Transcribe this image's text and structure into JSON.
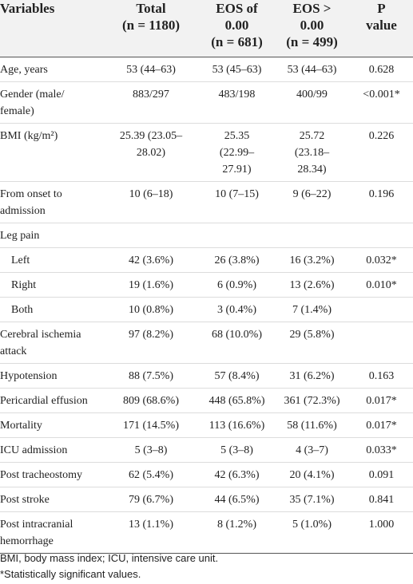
{
  "headers": [
    {
      "lines": [
        "Variables"
      ]
    },
    {
      "lines": [
        "Total",
        "(n = 1180)"
      ]
    },
    {
      "lines": [
        "EOS of",
        "0.00",
        "(n = 681)"
      ]
    },
    {
      "lines": [
        "EOS >",
        "0.00",
        "(n = 499)"
      ]
    },
    {
      "lines": [
        "P",
        "value"
      ]
    }
  ],
  "rows": [
    {
      "label": [
        "Age, years"
      ],
      "total": [
        "53 (44–63)"
      ],
      "eos0": [
        "53 (45–63)"
      ],
      "eos_pos": [
        "53 (44–63)"
      ],
      "p": [
        "0.628"
      ]
    },
    {
      "label": [
        "Gender (male/",
        "female)"
      ],
      "total": [
        "883/297"
      ],
      "eos0": [
        "483/198"
      ],
      "eos_pos": [
        "400/99"
      ],
      "p": [
        "<0.001*"
      ]
    },
    {
      "label": [
        "BMI (kg/m²)"
      ],
      "total": [
        "25.39 (23.05–",
        "28.02)"
      ],
      "eos0": [
        "25.35",
        "(22.99–",
        "27.91)"
      ],
      "eos_pos": [
        "25.72",
        "(23.18–",
        "28.34)"
      ],
      "p": [
        "0.226"
      ]
    },
    {
      "label": [
        "From onset to",
        "admission"
      ],
      "total": [
        "10 (6–18)"
      ],
      "eos0": [
        "10 (7–15)"
      ],
      "eos_pos": [
        "9 (6–22)"
      ],
      "p": [
        "0.196"
      ]
    },
    {
      "label": [
        "Leg pain"
      ],
      "total": [
        ""
      ],
      "eos0": [
        ""
      ],
      "eos_pos": [
        ""
      ],
      "p": [
        ""
      ]
    },
    {
      "label": [
        "Left"
      ],
      "sub": true,
      "total": [
        "42 (3.6%)"
      ],
      "eos0": [
        "26 (3.8%)"
      ],
      "eos_pos": [
        "16 (3.2%)"
      ],
      "p": [
        "0.032*"
      ]
    },
    {
      "label": [
        "Right"
      ],
      "sub": true,
      "total": [
        "19 (1.6%)"
      ],
      "eos0": [
        "6 (0.9%)"
      ],
      "eos_pos": [
        "13 (2.6%)"
      ],
      "p": [
        "0.010*"
      ]
    },
    {
      "label": [
        "Both"
      ],
      "sub": true,
      "total": [
        "10 (0.8%)"
      ],
      "eos0": [
        "3 (0.4%)"
      ],
      "eos_pos": [
        "7 (1.4%)"
      ],
      "p": [
        ""
      ]
    },
    {
      "label": [
        "Cerebral ischemia",
        "attack"
      ],
      "total": [
        "97 (8.2%)"
      ],
      "eos0": [
        "68 (10.0%)"
      ],
      "eos_pos": [
        "29 (5.8%)"
      ],
      "p": [
        ""
      ]
    },
    {
      "label": [
        "Hypotension"
      ],
      "total": [
        "88 (7.5%)"
      ],
      "eos0": [
        "57 (8.4%)"
      ],
      "eos_pos": [
        "31 (6.2%)"
      ],
      "p": [
        "0.163"
      ]
    },
    {
      "label": [
        "Pericardial effusion"
      ],
      "total": [
        "809 (68.6%)"
      ],
      "eos0": [
        "448 (65.8%)"
      ],
      "eos_pos": [
        "361 (72.3%)"
      ],
      "p": [
        "0.017*"
      ]
    },
    {
      "label": [
        "Mortality"
      ],
      "total": [
        "171 (14.5%)"
      ],
      "eos0": [
        "113 (16.6%)"
      ],
      "eos_pos": [
        "58 (11.6%)"
      ],
      "p": [
        "0.017*"
      ]
    },
    {
      "label": [
        "ICU admission"
      ],
      "total": [
        "5 (3–8)"
      ],
      "eos0": [
        "5 (3–8)"
      ],
      "eos_pos": [
        "4 (3–7)"
      ],
      "p": [
        "0.033*"
      ]
    },
    {
      "label": [
        "Post tracheostomy"
      ],
      "total": [
        "62 (5.4%)"
      ],
      "eos0": [
        "42 (6.3%)"
      ],
      "eos_pos": [
        "20 (4.1%)"
      ],
      "p": [
        "0.091"
      ]
    },
    {
      "label": [
        "Post stroke"
      ],
      "total": [
        "79 (6.7%)"
      ],
      "eos0": [
        "44 (6.5%)"
      ],
      "eos_pos": [
        "35 (7.1%)"
      ],
      "p": [
        "0.841"
      ]
    },
    {
      "label": [
        "Post intracranial",
        "hemorrhage"
      ],
      "total": [
        "13 (1.1%)"
      ],
      "eos0": [
        "8 (1.2%)"
      ],
      "eos_pos": [
        "5 (1.0%)"
      ],
      "p": [
        "1.000"
      ]
    }
  ],
  "footnotes": [
    "BMI, body mass index; ICU, intensive care unit.",
    "*Statistically significant values."
  ]
}
